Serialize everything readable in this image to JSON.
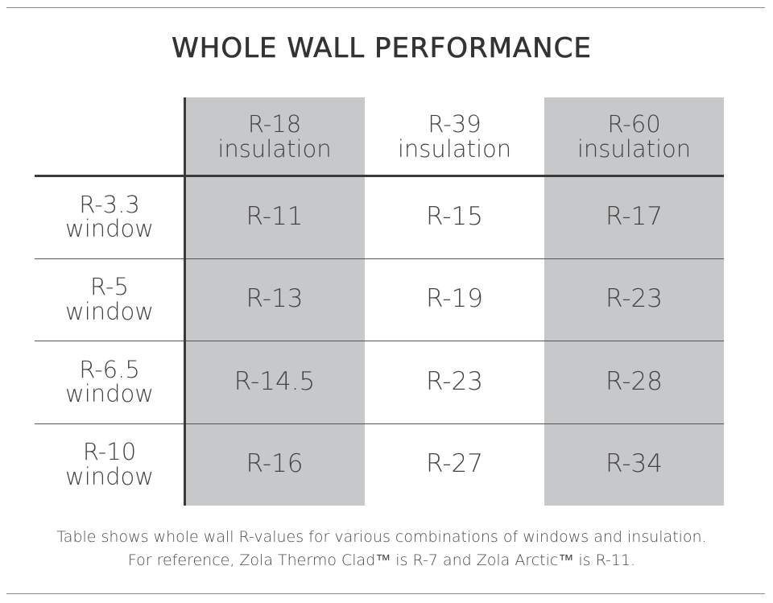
{
  "title": "WHOLE WALL PERFORMANCE",
  "chart_data": {
    "type": "table",
    "columns": [
      {
        "line1": "R-18",
        "line2": "insulation",
        "shaded": true
      },
      {
        "line1": "R-39",
        "line2": "insulation",
        "shaded": false
      },
      {
        "line1": "R-60",
        "line2": "insulation",
        "shaded": true
      }
    ],
    "rows": [
      {
        "line1": "R-3.3",
        "line2": "window",
        "values": [
          "R-11",
          "R-15",
          "R-17"
        ]
      },
      {
        "line1": "R-5",
        "line2": "window",
        "values": [
          "R-13",
          "R-19",
          "R-23"
        ]
      },
      {
        "line1": "R-6.5",
        "line2": "window",
        "values": [
          "R-14.5",
          "R-23",
          "R-28"
        ]
      },
      {
        "line1": "R-10",
        "line2": "window",
        "values": [
          "R-16",
          "R-27",
          "R-34"
        ]
      }
    ],
    "shade_color": "#c7c8ca"
  },
  "footnote": {
    "line1": "Table shows whole wall R-values for various combinations of windows and insulation.",
    "line2": "For reference, Zola Thermo Clad™ is R-7 and Zola Arctic™ is R-11."
  }
}
